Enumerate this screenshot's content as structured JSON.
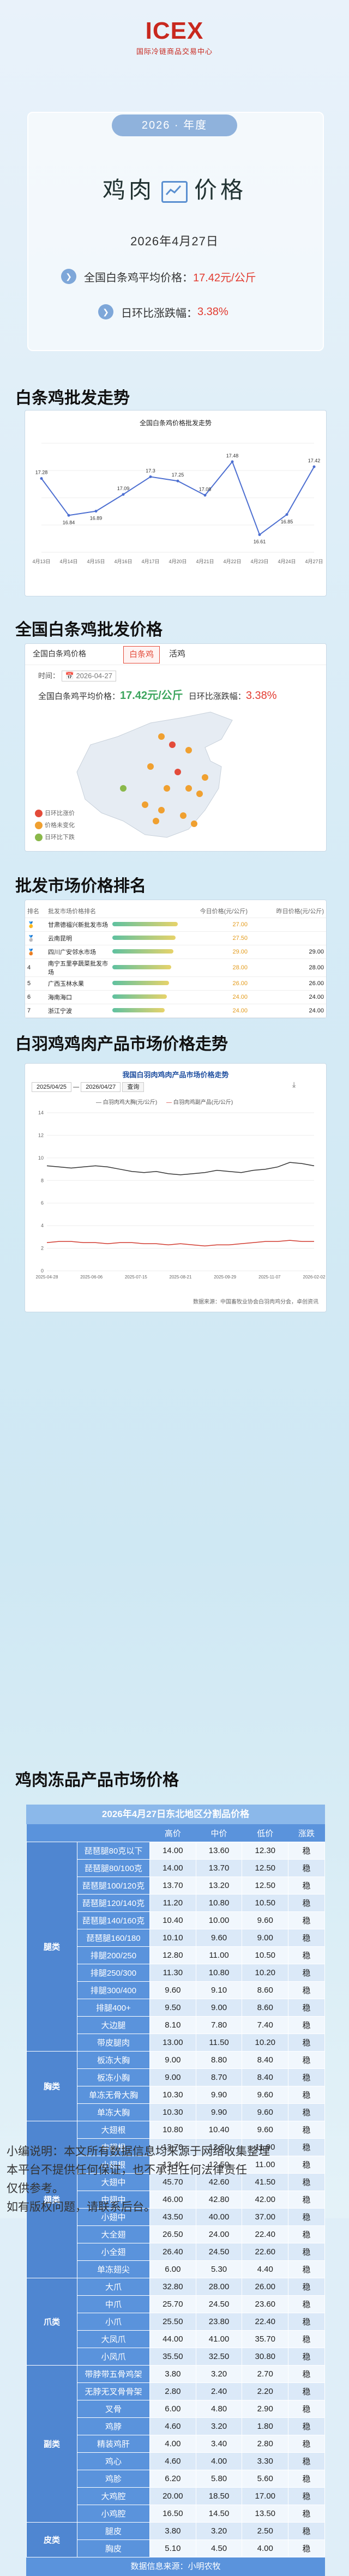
{
  "header": {
    "logo_text": "ICEX",
    "logo_sub": "国际冷链商品交易中心",
    "year_pill": "2026 · 年度",
    "title_left": "鸡肉",
    "title_right": "价格",
    "date": "2026年4月27日",
    "avg_label": "全国白条鸡平均价格：",
    "avg_value": "17.42元/公斤",
    "change_label": "日环比涨跌幅：",
    "change_value": "3.38%"
  },
  "section1": {
    "title": "白条鸡批发走势",
    "chart_title": "全国白条鸡价格批发走势",
    "chart_data": {
      "type": "line",
      "title": "全国白条鸡价格批发走势",
      "categories": [
        "4月13日",
        "4月14日",
        "4月15日",
        "4月16日",
        "4月17日",
        "4月20日",
        "4月21日",
        "4月22日",
        "4月23日",
        "4月24日",
        "4月27日"
      ],
      "values": [
        17.28,
        16.84,
        16.89,
        17.09,
        17.3,
        17.25,
        17.08,
        17.48,
        16.61,
        16.85,
        17.42
      ],
      "value_labels": [
        "17.28",
        "16.84",
        "16.89",
        "17.09",
        "17.3",
        "17.25",
        "17.08",
        "17.48",
        "16.61",
        "16.85",
        "17.42"
      ],
      "ylim": [
        16.4,
        17.7
      ],
      "color": "#4d6fd1"
    }
  },
  "section2": {
    "title": "全国白条鸡批发价格",
    "tab_active": "全国白条鸡价格",
    "tab_red": "白条鸡",
    "tab_live": "活鸡",
    "time_label": "时间：",
    "date_value": "2026-04-27",
    "avg_label": "全国白条鸡平均价格：",
    "avg_value": "17.42元/公斤",
    "change_label": "日环比涨跌幅：",
    "change_value": "3.38%",
    "legend": [
      "日环比涨价",
      "价格未变化",
      "日环比下跌"
    ],
    "legend_colors": [
      "#e34b3a",
      "#f0a030",
      "#8ab84a"
    ]
  },
  "section3": {
    "title": "批发市场价格排名",
    "headers": [
      "排名",
      "批发市场价格排名",
      "今日价格(元/公斤)",
      "昨日价格(元/公斤)"
    ],
    "rows": [
      {
        "rank": "1",
        "name": "甘肃德福兴新批发市场",
        "today": "27.00",
        "yesterday": ""
      },
      {
        "rank": "2",
        "name": "云南昆明",
        "today": "27.50",
        "yesterday": ""
      },
      {
        "rank": "3",
        "name": "四川广安邻水市场",
        "today": "29.00",
        "yesterday": "29.00"
      },
      {
        "rank": "4",
        "name": "南宁五里亭蔬菜批发市场",
        "today": "28.00",
        "yesterday": "28.00"
      },
      {
        "rank": "5",
        "name": "广西玉林水果",
        "today": "26.00",
        "yesterday": "26.00"
      },
      {
        "rank": "6",
        "name": "海南海口",
        "today": "24.00",
        "yesterday": "24.00"
      },
      {
        "rank": "7",
        "name": "浙江宁波",
        "today": "24.00",
        "yesterday": "24.00"
      }
    ]
  },
  "section4": {
    "title": "白羽鸡鸡肉产品市场价格走势",
    "chart_title": "我国白羽肉鸡肉产品市场价格走势",
    "date_from": "2025/04/25",
    "date_to": "2026/04/27",
    "query": "查询",
    "legend": [
      "白羽肉鸡大胸(元/公斤)",
      "白羽肉鸡副产品(元/公斤)"
    ],
    "source": "数据来源：中国畜牧业协会白羽肉鸡分会，卓创资讯",
    "chart_data": {
      "type": "line",
      "title": "我国白羽肉鸡肉产品市场价格走势",
      "x_ticks": [
        "2025-04-28",
        "2025-06-06",
        "2025-07-15",
        "2025-08-21",
        "2025-09-29",
        "2025-11-07",
        "2026-02-02"
      ],
      "ylim": [
        0,
        14
      ],
      "y_ticks": [
        "0",
        "2",
        "4",
        "6",
        "8",
        "10",
        "12",
        "14"
      ],
      "series": [
        {
          "name": "白羽肉鸡大胸(元/公斤)",
          "color": "#333333",
          "values": [
            9.3,
            9.2,
            9.1,
            9.2,
            9.3,
            9.2,
            9.0,
            8.8,
            8.7,
            8.8,
            8.6,
            8.5,
            8.6,
            8.7,
            8.9,
            8.8,
            8.7,
            8.9,
            9.0,
            9.2,
            9.6,
            9.5,
            9.3
          ]
        },
        {
          "name": "白羽肉鸡副产品(元/公斤)",
          "color": "#d13b30",
          "values": [
            2.5,
            2.6,
            2.6,
            2.5,
            2.5,
            2.4,
            2.5,
            2.5,
            2.4,
            2.4,
            2.3,
            2.4,
            2.3,
            2.2,
            2.3,
            2.3,
            2.4,
            2.5,
            2.6,
            2.6,
            2.7,
            2.6,
            2.6
          ]
        }
      ]
    }
  },
  "section5": {
    "title": "鸡肉冻品产品市场价格",
    "caption": "2026年4月27日东北地区分割品价格",
    "headers": [
      "",
      "",
      "高价",
      "中价",
      "低价",
      "涨跌"
    ],
    "groups": [
      {
        "cat": "腿类",
        "rows": [
          [
            "琵琶腿80克以下",
            "14.00",
            "13.60",
            "12.30",
            "稳"
          ],
          [
            "琵琶腿80/100克",
            "14.00",
            "13.70",
            "12.50",
            "稳"
          ],
          [
            "琵琶腿100/120克",
            "13.70",
            "13.20",
            "12.50",
            "稳"
          ],
          [
            "琵琶腿120/140克",
            "11.20",
            "10.80",
            "10.50",
            "稳"
          ],
          [
            "琵琶腿140/160克",
            "10.40",
            "10.00",
            "9.60",
            "稳"
          ],
          [
            "琵琶腿160/180",
            "10.10",
            "9.60",
            "9.00",
            "稳"
          ],
          [
            "排腿200/250",
            "12.80",
            "11.00",
            "10.50",
            "稳"
          ],
          [
            "排腿250/300",
            "11.30",
            "10.80",
            "10.20",
            "稳"
          ],
          [
            "排腿300/400",
            "9.60",
            "9.10",
            "8.60",
            "稳"
          ],
          [
            "排腿400+",
            "9.50",
            "9.00",
            "8.60",
            "稳"
          ],
          [
            "大边腿",
            "8.10",
            "7.80",
            "7.40",
            "稳"
          ],
          [
            "带皮腿肉",
            "13.00",
            "11.50",
            "10.20",
            "稳"
          ]
        ]
      },
      {
        "cat": "胸类",
        "rows": [
          [
            "板冻大胸",
            "9.00",
            "8.80",
            "8.40",
            "稳"
          ],
          [
            "板冻小胸",
            "9.00",
            "8.70",
            "8.40",
            "稳"
          ],
          [
            "单冻无骨大胸",
            "10.30",
            "9.90",
            "9.60",
            "稳"
          ],
          [
            "单冻大胸",
            "10.30",
            "9.90",
            "9.60",
            "稳"
          ]
        ]
      },
      {
        "cat": "翅类",
        "rows": [
          [
            "大翅根",
            "10.80",
            "10.40",
            "9.60",
            "稳"
          ],
          [
            "中翅根",
            "13.70",
            "12.50",
            "11.90",
            "稳"
          ],
          [
            "小翅根",
            "13.40",
            "12.50",
            "11.00",
            "稳"
          ],
          [
            "大翅中",
            "45.70",
            "42.60",
            "41.50",
            "稳"
          ],
          [
            "中翅中",
            "46.00",
            "42.80",
            "42.00",
            "稳"
          ],
          [
            "小翅中",
            "43.50",
            "40.00",
            "37.00",
            "稳"
          ],
          [
            "大全翅",
            "26.50",
            "24.00",
            "22.40",
            "稳"
          ],
          [
            "小全翅",
            "26.40",
            "24.50",
            "22.60",
            "稳"
          ],
          [
            "单冻翅尖",
            "6.00",
            "5.30",
            "4.40",
            "稳"
          ]
        ]
      },
      {
        "cat": "爪类",
        "rows": [
          [
            "大爪",
            "32.80",
            "28.00",
            "26.00",
            "稳"
          ],
          [
            "中爪",
            "25.70",
            "24.50",
            "23.60",
            "稳"
          ],
          [
            "小爪",
            "25.50",
            "23.80",
            "22.40",
            "稳"
          ],
          [
            "大凤爪",
            "44.00",
            "41.00",
            "35.70",
            "稳"
          ],
          [
            "小凤爪",
            "35.50",
            "32.50",
            "30.80",
            "稳"
          ]
        ]
      },
      {
        "cat": "副类",
        "rows": [
          [
            "带脖带五骨鸡架",
            "3.80",
            "3.20",
            "2.70",
            "稳"
          ],
          [
            "无脖无叉骨骨架",
            "2.80",
            "2.40",
            "2.20",
            "稳"
          ],
          [
            "叉骨",
            "6.00",
            "4.80",
            "2.90",
            "稳"
          ],
          [
            "鸡脖",
            "4.60",
            "3.20",
            "1.80",
            "稳"
          ],
          [
            "精装鸡肝",
            "4.00",
            "3.40",
            "2.80",
            "稳"
          ],
          [
            "鸡心",
            "4.60",
            "4.00",
            "3.30",
            "稳"
          ],
          [
            "鸡胗",
            "6.20",
            "5.80",
            "5.60",
            "稳"
          ],
          [
            "大鸡腔",
            "20.00",
            "18.50",
            "17.00",
            "稳"
          ],
          [
            "小鸡腔",
            "16.50",
            "14.50",
            "13.50",
            "稳"
          ]
        ]
      },
      {
        "cat": "皮类",
        "rows": [
          [
            "腿皮",
            "3.80",
            "3.20",
            "2.50",
            "稳"
          ],
          [
            "胸皮",
            "5.10",
            "4.50",
            "4.00",
            "稳"
          ]
        ]
      }
    ],
    "footer": "数据信息来源：小明农牧"
  },
  "notes": {
    "line1": "小编说明：本文所有数据信息均来源于网络收集整理",
    "line2": "本平台不提供任何保证，也不承担任何法律责任",
    "line3": "仅供参考。",
    "line4": "如有版权问题，请联系后台。"
  }
}
